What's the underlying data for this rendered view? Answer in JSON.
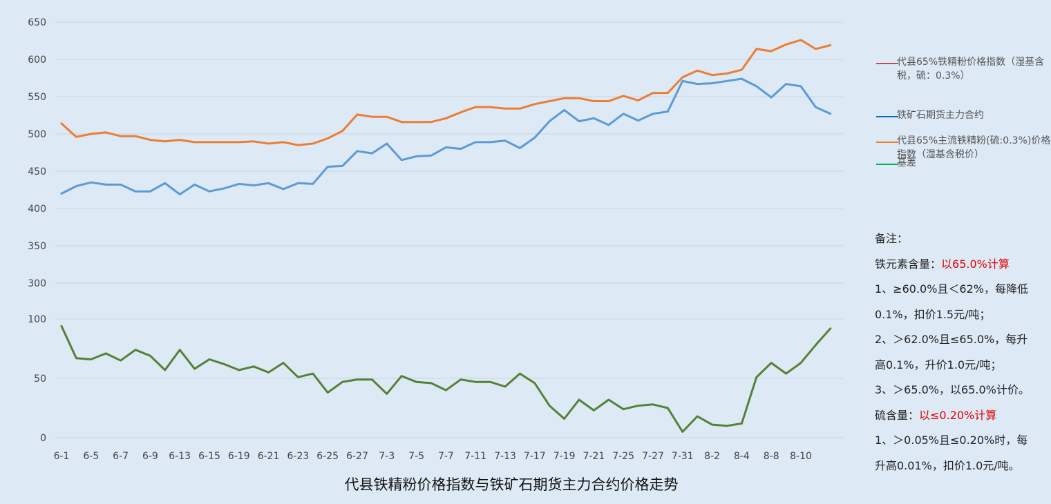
{
  "chart_data": {
    "type": "line",
    "title": "代县铁精粉价格指数与铁矿石期货主力合约价格走势",
    "x_tick_labels": [
      "6-1",
      "6-5",
      "6-7",
      "6-9",
      "6-13",
      "6-15",
      "6-19",
      "6-21",
      "6-23",
      "6-25",
      "6-27",
      "7-3",
      "7-5",
      "7-7",
      "7-11",
      "7-13",
      "7-17",
      "7-19",
      "7-21",
      "7-25",
      "7-27",
      "7-31",
      "8-2",
      "8-4",
      "8-8",
      "8-10"
    ],
    "upper_y_ticks": [
      "650",
      "600",
      "550",
      "500",
      "450",
      "400",
      "350",
      "300"
    ],
    "lower_y_ticks": [
      "100",
      "50",
      "0"
    ],
    "ylim_upper": [
      300,
      650
    ],
    "ylim_lower": [
      0,
      100
    ],
    "series": [
      {
        "name": "代县65%主流铁精粉(硫:0.3%)价格指数（湿基含税价）",
        "color": "#ed7d31",
        "panel": "upper",
        "values": [
          514,
          496,
          500,
          502,
          497,
          497,
          492,
          490,
          492,
          489,
          489,
          489,
          489,
          490,
          487,
          489,
          485,
          487,
          494,
          504,
          526,
          523,
          523,
          516,
          516,
          516,
          521,
          529,
          536,
          536,
          534,
          534,
          540,
          544,
          548,
          548,
          544,
          544,
          551,
          545,
          555,
          555,
          576,
          585,
          579,
          581,
          586,
          614,
          611,
          620,
          626,
          614,
          619
        ]
      },
      {
        "name": "铁矿石期货主力合约",
        "color": "#5b9bd5",
        "panel": "upper",
        "values": [
          420,
          430,
          435,
          432,
          432,
          423,
          423,
          434,
          419,
          432,
          423,
          427,
          433,
          431,
          434,
          426,
          434,
          433,
          456,
          457,
          477,
          474,
          487,
          465,
          470,
          471,
          482,
          480,
          489,
          489,
          491,
          481,
          495,
          517,
          532,
          517,
          521,
          512,
          527,
          518,
          527,
          530,
          571,
          567,
          568,
          571,
          574,
          564,
          549,
          567,
          564,
          536,
          527
        ]
      },
      {
        "name": "基差",
        "color": "#548235",
        "panel": "lower",
        "values": [
          94,
          67,
          66,
          71,
          65,
          74,
          69,
          57,
          74,
          58,
          66,
          62,
          57,
          60,
          55,
          63,
          51,
          54,
          38,
          47,
          49,
          49,
          37,
          52,
          47,
          46,
          40,
          49,
          47,
          47,
          43,
          54,
          46,
          27,
          16,
          32,
          23,
          32,
          24,
          27,
          28,
          25,
          5,
          18,
          11,
          10,
          12,
          51,
          63,
          54,
          63,
          78,
          92
        ]
      }
    ],
    "legend": [
      {
        "label": "代县65%铁精粉价格指数（湿基含税，硫：0.3%）",
        "color": "#c0504d"
      },
      {
        "label": "铁矿石期货主力合约",
        "color": "#0070c0"
      },
      {
        "label": "代县65%主流铁精粉(硫:0.3%)价格指数（湿基含税价）",
        "color": "#ed7d31"
      },
      {
        "label": "基差",
        "color": "#00b050"
      }
    ]
  },
  "notes": {
    "title": "备注：",
    "iron_label": "铁元素含量：",
    "iron_rule": "以65.0%计算",
    "iron_lines": [
      "1、≥60.0%且＜62%，每降低",
      "0.1%，扣价1.5元/吨；",
      "2、＞62.0%且≤65.0%，每升",
      "高0.1%，升价1.0元/吨；",
      "3、＞65.0%，以65.0%计价。"
    ],
    "sulfur_label": "硫含量：",
    "sulfur_rule": "以≤0.20%计算",
    "sulfur_lines": [
      "1、＞0.05%且≤0.20%时，每",
      "升高0.01%，扣价1.0元/吨。"
    ]
  }
}
